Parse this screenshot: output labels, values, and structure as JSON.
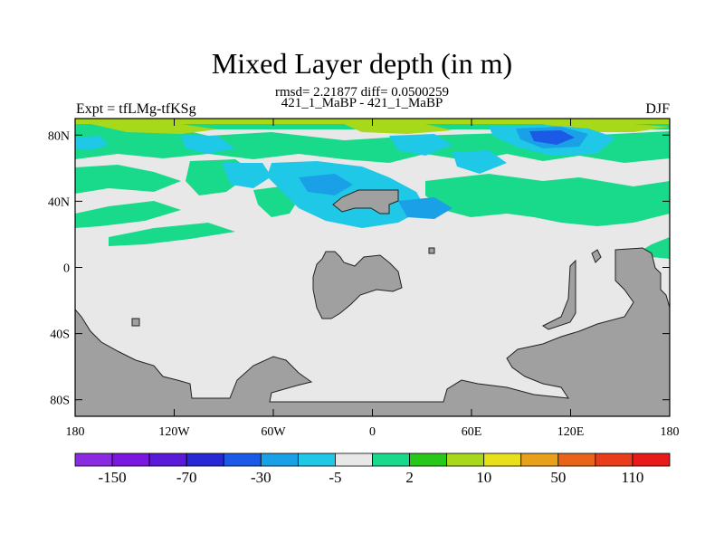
{
  "chart_data": {
    "type": "heatmap",
    "title": "Mixed Layer depth (in m)",
    "stats_line": "rmsd= 2.21877 diff= 0.0500259",
    "comparison": "421_1_MaBP - 421_1_MaBP",
    "left_label": "Expt = tfLMg-tfKSg",
    "right_label": "DJF",
    "x_ticks": [
      "180",
      "120W",
      "60W",
      "0",
      "60E",
      "120E",
      "180"
    ],
    "y_ticks": [
      "80N",
      "40N",
      "0",
      "40S",
      "80S"
    ],
    "x_range": [
      -180,
      180
    ],
    "y_range": [
      -90,
      90
    ],
    "colorbar": {
      "colors": [
        "#8a2be2",
        "#7a18e0",
        "#5a1ad8",
        "#2828d4",
        "#1a5ae6",
        "#1aa0e6",
        "#1ec8e6",
        "#e8e8e8",
        "#19d98a",
        "#28c81a",
        "#a8d81a",
        "#e8e01a",
        "#e8a01a",
        "#e8641a",
        "#e83c1a",
        "#e81a1a"
      ],
      "labels": [
        "-150",
        "-70",
        "-30",
        "-5",
        "2",
        "10",
        "50",
        "110"
      ]
    },
    "land_mask_color": "#a0a0a0",
    "field_summary": "Mostly 2 m (near-zero) difference; green (+2 to +10) and light-blue (-5 to -2) patches in northern mid/high latitudes; deeper blue (-30) near 80N 90E-150E."
  }
}
